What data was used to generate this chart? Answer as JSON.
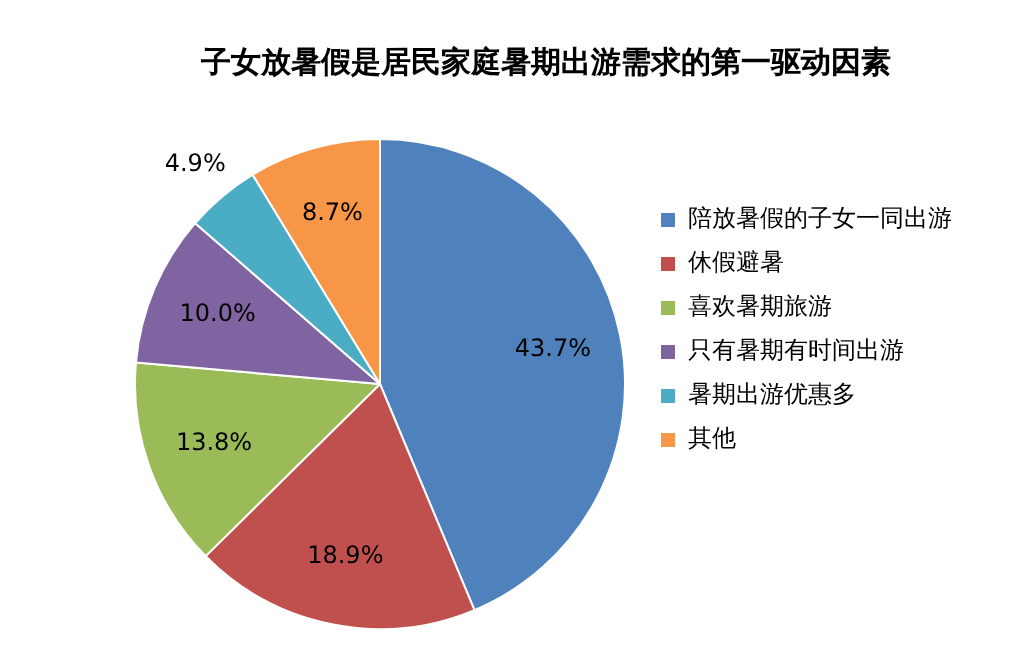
{
  "chart_data": {
    "type": "pie",
    "title": "子女放暑假是居民家庭暑期出游需求的第一驱动因素",
    "categories": [
      "陪放暑假的子女一同出游",
      "休假避暑",
      "喜欢暑期旅游",
      "只有暑期有时间出游",
      "暑期出游优惠多",
      "其他"
    ],
    "values": [
      43.7,
      18.9,
      13.8,
      10.0,
      4.9,
      8.7
    ],
    "value_labels": [
      "43.7%",
      "18.9%",
      "13.8%",
      "10.0%",
      "4.9%",
      "8.7%"
    ],
    "colors": [
      "#4f81bd",
      "#c0504d",
      "#9bbb59",
      "#8064a2",
      "#4bacc6",
      "#f79646"
    ],
    "legend": "right"
  }
}
